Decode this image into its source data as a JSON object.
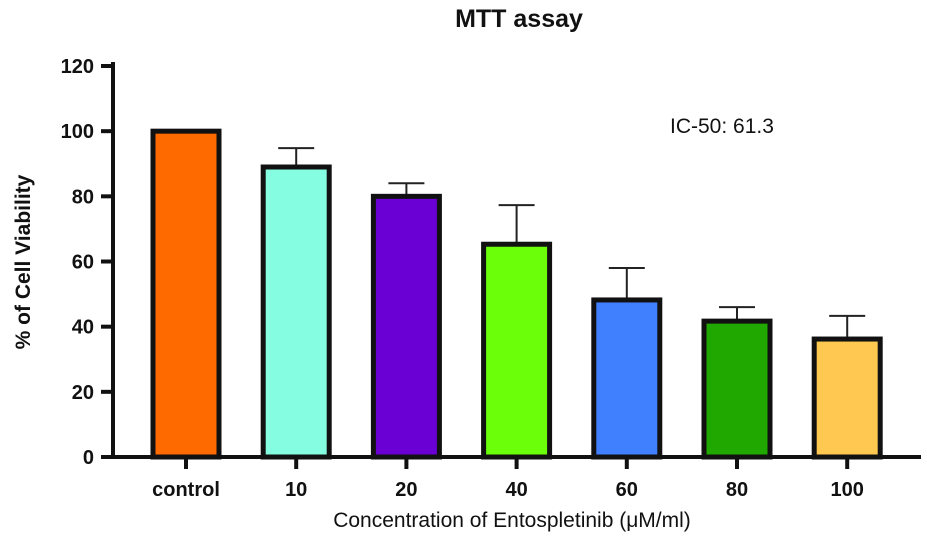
{
  "chart_data": {
    "type": "bar",
    "title": "MTT assay",
    "xlabel": "Concentration of Entospletinib  (μM/ml)",
    "ylabel": "% of Cell Viability",
    "ylim": [
      0,
      120
    ],
    "yticks": [
      "0",
      "20",
      "40",
      "60",
      "80",
      "100",
      "120"
    ],
    "categories": [
      "control",
      "10",
      "20",
      "40",
      "60",
      "80",
      "100"
    ],
    "values": [
      100,
      89,
      80,
      65.3,
      48.2,
      41.7,
      36.2
    ],
    "error_upper": [
      100,
      94.8,
      84,
      77.3,
      58,
      46,
      43.3
    ],
    "colors": [
      "#ff6a00",
      "#84fde0",
      "#6a00d4",
      "#6cff0a",
      "#4080ff",
      "#20a800",
      "#ffc850"
    ],
    "annotation": "IC-50: 61.3",
    "grid": false,
    "legend": "none"
  }
}
